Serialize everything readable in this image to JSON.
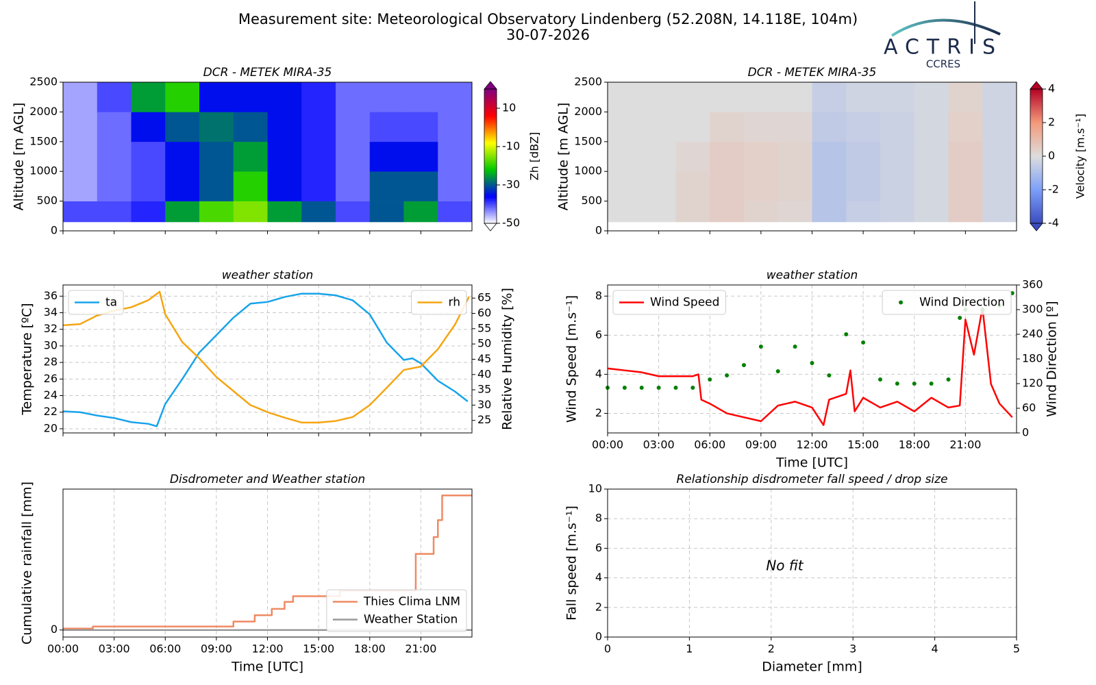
{
  "header": {
    "title": "Measurement site: Meteorological Observatory Lindenberg (52.208N, 14.118E, 104m)",
    "date": "30-07-2026"
  },
  "logo": {
    "name": "ACTRIS",
    "subtitle": "CCRES"
  },
  "chart_data": [
    {
      "type": "heatmap",
      "title": "DCR - METEK MIRA-35",
      "ylabel": "Altitude [m AGL]",
      "xlim": [
        0,
        24
      ],
      "xticks": [
        0,
        3,
        6,
        9,
        12,
        15,
        18,
        21
      ],
      "ylim": [
        0,
        2500
      ],
      "yticks": [
        0,
        500,
        1000,
        1500,
        2000,
        2500
      ],
      "x": [
        0,
        2,
        4,
        6,
        8,
        10,
        12,
        14,
        16,
        18,
        20,
        22,
        24
      ],
      "y": [
        150,
        500,
        1000,
        1500,
        2000,
        2500
      ],
      "z": [
        [
          -40,
          -40,
          -38,
          -25,
          -18,
          -15,
          -25,
          -30,
          -40,
          -30,
          -25,
          -40
        ],
        [
          -45,
          -42,
          -40,
          -35,
          -30,
          -20,
          -35,
          -38,
          -42,
          -30,
          -30,
          -42
        ],
        [
          -45,
          -42,
          -40,
          -35,
          -30,
          -25,
          -35,
          -38,
          -42,
          -35,
          -35,
          -42
        ],
        [
          -45,
          -42,
          -35,
          -30,
          -28,
          -30,
          -35,
          -38,
          -42,
          -40,
          -40,
          -42
        ],
        [
          -45,
          -40,
          -25,
          -20,
          -35,
          -35,
          -35,
          -38,
          -42,
          -42,
          -42,
          -42
        ]
      ],
      "clim": [
        -50,
        20
      ],
      "cticks": [
        10,
        -10,
        -30,
        -50
      ],
      "clabel": "Zh [dBZ]",
      "colormap": [
        "#ffffff",
        "#0000ff",
        "#00c800",
        "#ffff00",
        "#ff0000",
        "#800080"
      ]
    },
    {
      "type": "heatmap",
      "title": "DCR - METEK MIRA-35",
      "ylabel": "Altitude [m AGL]",
      "xlim": [
        0,
        24
      ],
      "xticks": [
        0,
        3,
        6,
        9,
        12,
        15,
        18,
        21
      ],
      "ylim": [
        0,
        2500
      ],
      "yticks": [
        0,
        500,
        1000,
        1500,
        2000,
        2500
      ],
      "x": [
        0,
        2,
        4,
        6,
        8,
        10,
        12,
        14,
        16,
        18,
        20,
        22,
        24
      ],
      "y": [
        150,
        500,
        1000,
        1500,
        2000,
        2500
      ],
      "z": [
        [
          0,
          0,
          0.3,
          0.5,
          0.3,
          0.2,
          -0.8,
          -0.5,
          -0.4,
          -0.2,
          0.5,
          -0.3
        ],
        [
          0,
          0,
          0.3,
          0.5,
          0.4,
          0.3,
          -0.8,
          -0.6,
          -0.4,
          -0.2,
          0.5,
          -0.3
        ],
        [
          0,
          0,
          0.2,
          0.5,
          0.4,
          0.3,
          -0.8,
          -0.6,
          -0.4,
          -0.2,
          0.5,
          -0.3
        ],
        [
          0,
          0,
          0,
          0.3,
          0.2,
          0.2,
          -0.6,
          -0.5,
          -0.4,
          -0.2,
          0.4,
          -0.3
        ],
        [
          0,
          0,
          0,
          0,
          0,
          0,
          -0.5,
          -0.3,
          -0.3,
          -0.2,
          0.3,
          -0.3
        ]
      ],
      "clim": [
        -4,
        4
      ],
      "cticks": [
        4,
        2,
        0,
        -2,
        -4
      ],
      "clabel": "Velocity [m.s⁻¹]",
      "colormap": [
        "#3b4cc0",
        "#7b9ff9",
        "#dddddd",
        "#f49a7b",
        "#b40426"
      ]
    },
    {
      "type": "line",
      "title": "weather station",
      "ylabel": "Temperature [ºC]",
      "y2label": "Relative Humidity [%]",
      "grid": true,
      "xlim": [
        0,
        24
      ],
      "xticks": [
        0,
        3,
        6,
        9,
        12,
        15,
        18,
        21
      ],
      "ylim": [
        19.5,
        37.35
      ],
      "yticks": [
        20,
        22,
        24,
        26,
        28,
        30,
        32,
        34,
        36
      ],
      "y2lim": [
        20.9,
        69.3
      ],
      "y2ticks": [
        25,
        30,
        35,
        40,
        45,
        50,
        55,
        60,
        65
      ],
      "series": [
        {
          "name": "ta",
          "color": "#17a3ea",
          "legend": "upper left",
          "x": [
            0,
            1,
            2,
            3,
            4,
            5,
            5.5,
            6,
            7,
            8,
            9,
            10,
            11,
            12,
            13,
            14,
            15,
            16,
            17,
            18,
            19,
            20,
            20.5,
            21,
            22,
            23,
            23.75
          ],
          "values": [
            22.1,
            22.0,
            21.6,
            21.3,
            20.8,
            20.6,
            20.3,
            23.0,
            26.0,
            29.2,
            31.3,
            33.4,
            35.1,
            35.3,
            35.9,
            36.3,
            36.3,
            36.1,
            35.5,
            33.8,
            30.4,
            28.3,
            28.5,
            27.9,
            25.8,
            24.5,
            23.3
          ]
        },
        {
          "name": "rh",
          "color": "#f5a511",
          "legend": "upper right",
          "axis": "y2",
          "x": [
            0,
            1,
            2,
            3,
            4,
            5,
            5.67,
            6,
            7,
            8,
            9,
            10,
            11,
            12,
            13,
            14,
            15,
            16,
            17,
            18,
            19,
            20,
            21,
            22,
            23,
            23.83
          ],
          "values": [
            56.1,
            56.5,
            59.3,
            60.9,
            62.0,
            64.3,
            67.1,
            59.7,
            50.6,
            45.3,
            39.2,
            34.6,
            30.0,
            27.7,
            25.9,
            24.3,
            24.3,
            24.8,
            26.1,
            30.0,
            35.7,
            41.5,
            42.6,
            48.3,
            56.3,
            65.5
          ]
        }
      ]
    },
    {
      "type": "line",
      "title": "weather station",
      "xlabel": "Time [UTC]",
      "ylabel": "Wind Speed [m.s⁻¹]",
      "y2label": "Wind Direction [º]",
      "grid": true,
      "xlim": [
        0,
        24
      ],
      "xticks": [
        {
          "value": 0,
          "label": "00:00"
        },
        {
          "value": 3,
          "label": "03:00"
        },
        {
          "value": 6,
          "label": "06:00"
        },
        {
          "value": 9,
          "label": "09:00"
        },
        {
          "value": 12,
          "label": "12:00"
        },
        {
          "value": 15,
          "label": "15:00"
        },
        {
          "value": 18,
          "label": "18:00"
        },
        {
          "value": 21,
          "label": "21:00"
        }
      ],
      "ylim": [
        1.0,
        8.57
      ],
      "yticks": [
        2,
        4,
        6,
        8
      ],
      "y2lim": [
        0,
        360
      ],
      "y2ticks": [
        0,
        60,
        120,
        180,
        240,
        300,
        360
      ],
      "series": [
        {
          "name": "Wind Speed",
          "color": "#ff0000",
          "legend": "upper left",
          "x": [
            0,
            1,
            2,
            3,
            4,
            5,
            5.33,
            5.5,
            6,
            7,
            8,
            9,
            10,
            11,
            12,
            12.67,
            13,
            14,
            14.25,
            14.5,
            15,
            16,
            17,
            18,
            19,
            20,
            20.67,
            21,
            21.5,
            22,
            22.5,
            23,
            23.75
          ],
          "values": [
            4.3,
            4.2,
            4.1,
            3.9,
            3.9,
            3.9,
            4.0,
            2.7,
            2.5,
            2.0,
            1.8,
            1.6,
            2.4,
            2.6,
            2.3,
            1.4,
            2.7,
            3.0,
            4.2,
            2.1,
            2.8,
            2.3,
            2.6,
            2.1,
            2.8,
            2.3,
            2.4,
            6.8,
            5.0,
            7.4,
            3.5,
            2.5,
            1.8
          ]
        },
        {
          "name": "Wind Direction",
          "color": "#008000",
          "legend": "upper right",
          "axis": "y2",
          "type": "scatter",
          "x": [
            0,
            1,
            2,
            3,
            4,
            5,
            6,
            7,
            8,
            9,
            10,
            11,
            12,
            13,
            14,
            15,
            16,
            17,
            18,
            19,
            20,
            20.67,
            21,
            22,
            23,
            23.75
          ],
          "values": [
            110,
            110,
            110,
            110,
            110,
            110,
            130,
            140,
            165,
            210,
            150,
            210,
            170,
            140,
            240,
            220,
            130,
            120,
            120,
            120,
            130,
            280,
            300,
            300,
            310,
            340
          ]
        }
      ]
    },
    {
      "type": "line",
      "title": "Disdrometer and Weather station",
      "xlabel": "Time [UTC]",
      "ylabel": "Cumulative rainfall [mm]",
      "grid": true,
      "legend": "lower right",
      "drawstyle": "steps-post",
      "xlim": [
        0,
        24
      ],
      "xticks": [
        {
          "value": 0,
          "label": "00:00"
        },
        {
          "value": 3,
          "label": "03:00"
        },
        {
          "value": 6,
          "label": "06:00"
        },
        {
          "value": 9,
          "label": "09:00"
        },
        {
          "value": 12,
          "label": "12:00"
        },
        {
          "value": 15,
          "label": "15:00"
        },
        {
          "value": 18,
          "label": "18:00"
        },
        {
          "value": 21,
          "label": "21:00"
        }
      ],
      "ylim": [
        -0.5,
        10
      ],
      "yticks": [
        0
      ],
      "series": [
        {
          "name": "Thies Clima LNM",
          "color": "#ef8a62",
          "x": [
            0,
            1.75,
            10,
            11.25,
            12.25,
            13,
            13.5,
            16.25,
            20.7,
            21.75,
            22,
            22.25,
            24
          ],
          "values": [
            0.1,
            0.25,
            0.6,
            1.05,
            1.5,
            2.0,
            2.4,
            2.8,
            5.4,
            6.6,
            7.8,
            9.55,
            9.55
          ]
        },
        {
          "name": "Weather Station",
          "color": "#999999",
          "x": [
            0,
            24
          ],
          "values": [
            0,
            0
          ]
        }
      ]
    },
    {
      "type": "scatter",
      "title": "Relationship disdrometer fall speed / drop size",
      "xlabel": "Diameter [mm]",
      "ylabel": "Fall speed [m.s⁻¹]",
      "grid": true,
      "annotation": "No fit",
      "xlim": [
        0,
        5
      ],
      "xticks": [
        0,
        1,
        2,
        3,
        4,
        5
      ],
      "ylim": [
        0,
        10
      ],
      "yticks": [
        0,
        2,
        4,
        6,
        8,
        10
      ]
    }
  ]
}
